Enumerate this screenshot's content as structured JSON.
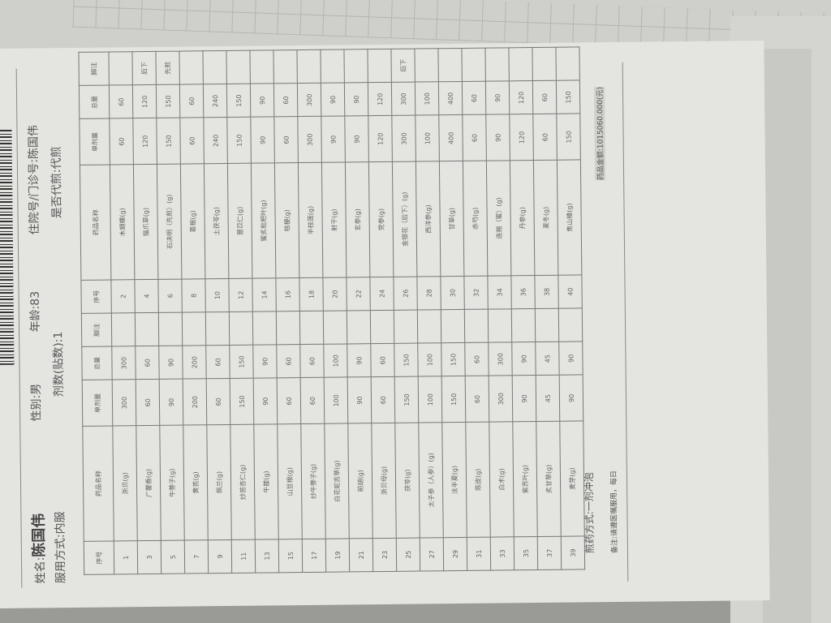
{
  "header": {
    "name_label": "姓名:",
    "name": "陈国伟",
    "gender": "性别:男",
    "age": "年龄:83",
    "admission": "住院号/门诊号:陈国伟",
    "usage": "服用方式:内服",
    "doses": "剂数(贴数):1",
    "decoction": "是否代煎:代煎"
  },
  "table": {
    "columns": [
      "序号",
      "药品名称",
      "单剂量",
      "总量",
      "脚注",
      "序号",
      "药品名称",
      "单剂量",
      "总量",
      "脚注"
    ],
    "rows": [
      [
        "1",
        "浙贝(g)",
        "300",
        "300",
        "",
        "2",
        "木蝴蝶(g)",
        "60",
        "60",
        ""
      ],
      [
        "3",
        "广藿香(g)",
        "60",
        "60",
        "",
        "4",
        "猫爪草(g)",
        "120",
        "120",
        "后下"
      ],
      [
        "5",
        "牛蒡子(g)",
        "90",
        "90",
        "",
        "6",
        "石决明（先煎）(g)",
        "150",
        "150",
        "先煎"
      ],
      [
        "7",
        "黄芪(g)",
        "200",
        "200",
        "",
        "8",
        "葛根(g)",
        "60",
        "60",
        ""
      ],
      [
        "9",
        "佩兰(g)",
        "60",
        "60",
        "",
        "10",
        "土茯苓(g)",
        "240",
        "240",
        ""
      ],
      [
        "11",
        "炒苦杏仁(g)",
        "150",
        "150",
        "",
        "12",
        "薏苡仁(g)",
        "150",
        "150",
        ""
      ],
      [
        "13",
        "牛膝(g)",
        "90",
        "90",
        "",
        "14",
        "蜜炙枇杷叶(g)",
        "90",
        "90",
        ""
      ],
      [
        "15",
        "山豆根(g)",
        "60",
        "60",
        "",
        "16",
        "桔梗(g)",
        "60",
        "60",
        ""
      ],
      [
        "17",
        "炒牛蒡子(g)",
        "60",
        "60",
        "",
        "18",
        "半枝莲(g)",
        "300",
        "300",
        ""
      ],
      [
        "19",
        "白花蛇舌草(g)",
        "100",
        "100",
        "",
        "20",
        "射干(g)",
        "90",
        "90",
        ""
      ],
      [
        "21",
        "前胡(g)",
        "90",
        "90",
        "",
        "22",
        "玄参(g)",
        "90",
        "90",
        ""
      ],
      [
        "23",
        "浙贝母(g)",
        "60",
        "60",
        "",
        "24",
        "党参(g)",
        "120",
        "120",
        ""
      ],
      [
        "25",
        "茯苓(g)",
        "150",
        "150",
        "",
        "26",
        "金银花（后下）(g)",
        "300",
        "300",
        "后下"
      ],
      [
        "27",
        "太子参（人参）(g)",
        "100",
        "100",
        "",
        "28",
        "西洋参(g)",
        "100",
        "100",
        ""
      ],
      [
        "29",
        "法半夏(g)",
        "150",
        "150",
        "",
        "30",
        "甘草(g)",
        "400",
        "400",
        ""
      ],
      [
        "31",
        "陈皮(g)",
        "60",
        "60",
        "",
        "32",
        "赤芍(g)",
        "60",
        "60",
        ""
      ],
      [
        "33",
        "白术(g)",
        "300",
        "300",
        "",
        "34",
        "连翘（蜜）(g)",
        "90",
        "90",
        ""
      ],
      [
        "35",
        "紫苏叶(g)",
        "90",
        "90",
        "",
        "36",
        "丹参(g)",
        "120",
        "120",
        ""
      ],
      [
        "37",
        "炙甘草(g)",
        "45",
        "45",
        "",
        "38",
        "麦冬(g)",
        "60",
        "60",
        ""
      ],
      [
        "39",
        "麦芽(g)",
        "90",
        "90",
        "",
        "40",
        "焦山楂(g)",
        "150",
        "150",
        ""
      ]
    ]
  },
  "footer": {
    "method": "煎药方式:一剂冲泡",
    "note": "备注:请遵医嘱服用，每日",
    "total": "药品金额:1015060.000(元)"
  }
}
